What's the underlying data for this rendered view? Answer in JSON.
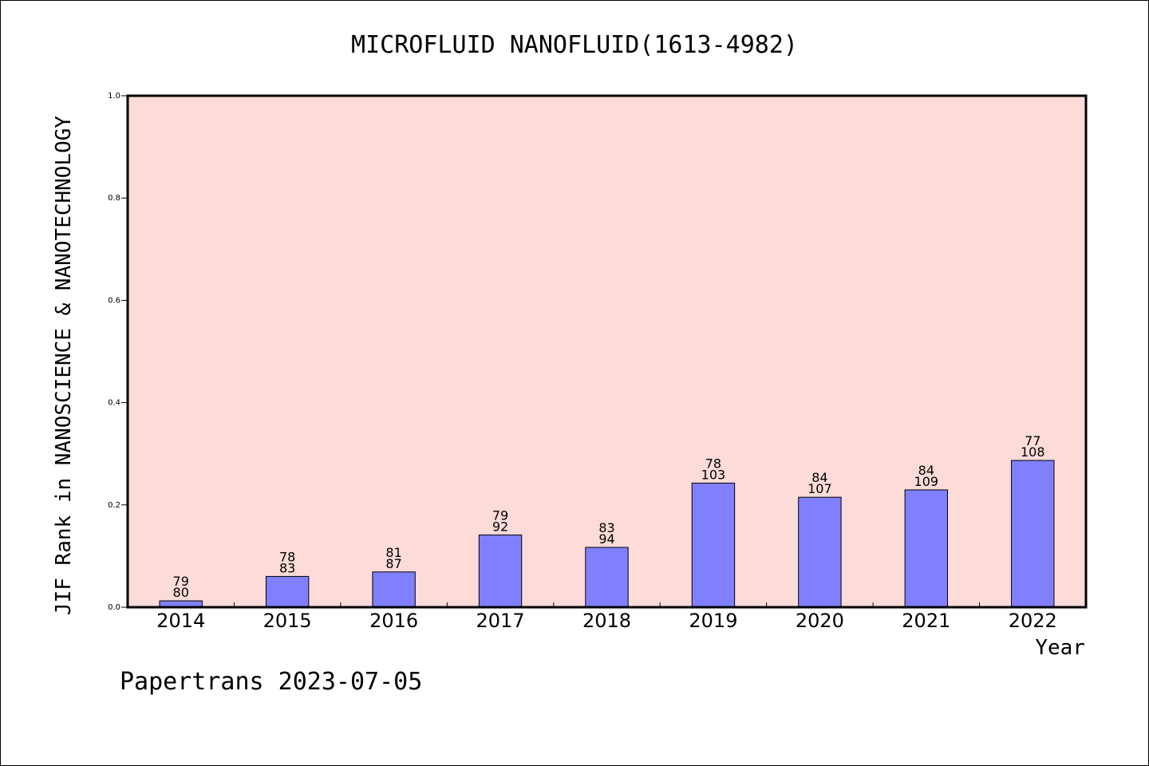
{
  "chart_data": {
    "type": "bar",
    "title": "MICROFLUID NANOFLUID(1613-4982)",
    "xlabel": "Year",
    "ylabel": "JIF Rank in NANOSCIENCE & NANOTECHNOLOGY",
    "ylim": [
      0,
      1.0
    ],
    "yticks": [
      "0.0",
      "0.2",
      "0.4",
      "0.6",
      "0.8",
      "1.0"
    ],
    "categories": [
      "2014",
      "2015",
      "2016",
      "2017",
      "2018",
      "2019",
      "2020",
      "2021",
      "2022"
    ],
    "values": [
      0.0125,
      0.0602,
      0.069,
      0.1413,
      0.117,
      0.2427,
      0.215,
      0.2294,
      0.287
    ],
    "rank": [
      "79",
      "78",
      "81",
      "79",
      "83",
      "78",
      "84",
      "84",
      "77"
    ],
    "total": [
      "80",
      "83",
      "87",
      "92",
      "94",
      "103",
      "107",
      "109",
      "108"
    ],
    "colors": {
      "plot_bg": "#fddbd8",
      "bar_fill": "#8080ff",
      "bar_stroke": "#000000"
    },
    "grid": false,
    "legend": "none"
  },
  "footer": "Papertrans 2023-07-05"
}
